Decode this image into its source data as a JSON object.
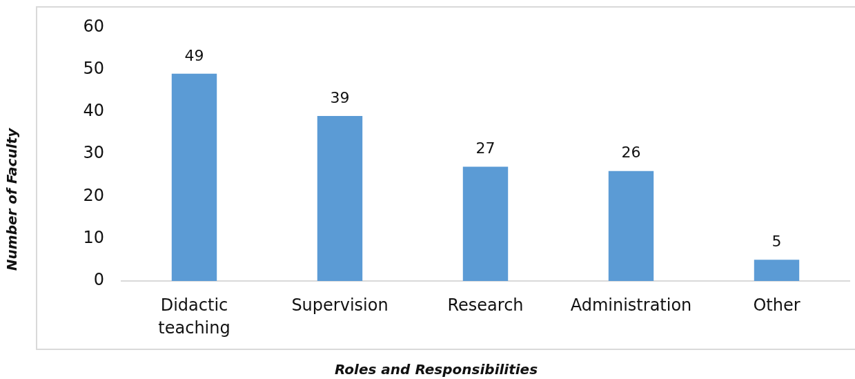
{
  "chart_data": {
    "type": "bar",
    "xlabel": "Roles and Responsibilities",
    "ylabel": "Number of Faculty",
    "categories": [
      "Didactic teaching",
      "Supervision",
      "Research",
      "Administration",
      "Other"
    ],
    "values": [
      49,
      39,
      27,
      26,
      5
    ],
    "color": "#5b9bd5",
    "ylim": [
      0,
      60
    ],
    "yticks": [
      0,
      10,
      20,
      30,
      40,
      50,
      60
    ],
    "data_labels": true,
    "grid": false,
    "legend": false
  }
}
